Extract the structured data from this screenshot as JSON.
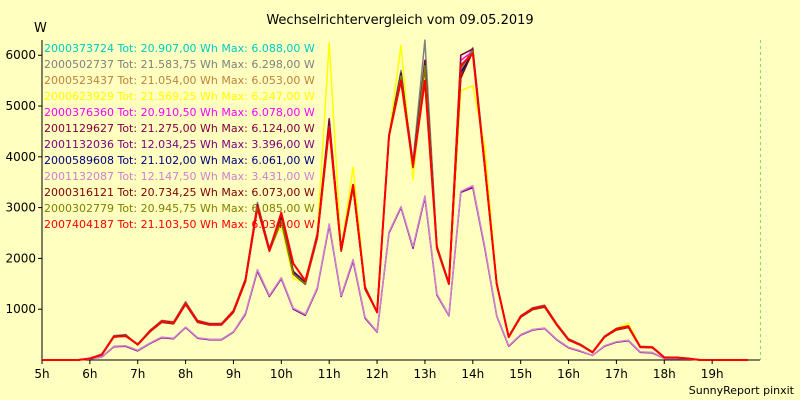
{
  "chart_data": {
    "type": "line",
    "title": "Wechselrichtervergleich vom 09.05.2019",
    "ylabel": "W",
    "xlabel": "",
    "footer": "SunnyReport pinxit",
    "x_ticks": [
      "5h",
      "6h",
      "7h",
      "8h",
      "9h",
      "10h",
      "11h",
      "12h",
      "13h",
      "14h",
      "15h",
      "16h",
      "17h",
      "18h",
      "19h"
    ],
    "x_range": [
      5,
      20
    ],
    "y_ticks": [
      1000,
      2000,
      3000,
      4000,
      5000,
      6000
    ],
    "ylim": [
      0,
      6300
    ],
    "grid": true,
    "legend_position": "top-left",
    "x": [
      5.0,
      5.25,
      5.5,
      5.75,
      6.0,
      6.25,
      6.5,
      6.75,
      7.0,
      7.25,
      7.5,
      7.75,
      8.0,
      8.25,
      8.5,
      8.75,
      9.0,
      9.25,
      9.5,
      9.75,
      10.0,
      10.25,
      10.5,
      10.75,
      11.0,
      11.25,
      11.5,
      11.75,
      12.0,
      12.25,
      12.5,
      12.75,
      13.0,
      13.25,
      13.5,
      13.75,
      14.0,
      14.25,
      14.5,
      14.75,
      15.0,
      15.25,
      15.5,
      15.75,
      16.0,
      16.25,
      16.5,
      16.75,
      17.0,
      17.25,
      17.5,
      17.75,
      18.0,
      18.25,
      18.5,
      18.75,
      19.0,
      19.25,
      19.5,
      19.75
    ],
    "series": [
      {
        "name": "2000373724 Tot: 20.907,00 Wh Max: 6.088,00 W",
        "color": "#00c8c8",
        "values": [
          0,
          0,
          0,
          0,
          30,
          100,
          450,
          480,
          300,
          550,
          750,
          720,
          1100,
          750,
          700,
          700,
          950,
          1550,
          3000,
          2150,
          2750,
          1700,
          1500,
          2400,
          4600,
          2150,
          3400,
          1400,
          950,
          4400,
          5600,
          3800,
          5800,
          2200,
          1500,
          5600,
          6050,
          3800,
          1500,
          450,
          850,
          1000,
          1050,
          700,
          400,
          300,
          150,
          450,
          600,
          650,
          250,
          250,
          50,
          50,
          30,
          0,
          0,
          0,
          0,
          0
        ]
      },
      {
        "name": "2000502737 Tot: 21.583,75 Wh Max: 6.298,00 W",
        "color": "#808080",
        "values": [
          0,
          0,
          0,
          0,
          30,
          100,
          480,
          500,
          300,
          580,
          780,
          750,
          1150,
          780,
          720,
          720,
          980,
          1600,
          3100,
          2200,
          2850,
          1750,
          1550,
          2500,
          4700,
          2200,
          3450,
          1450,
          950,
          4450,
          5700,
          3900,
          6298,
          2250,
          1520,
          5700,
          6150,
          3900,
          1520,
          470,
          870,
          1030,
          1080,
          720,
          420,
          310,
          160,
          470,
          620,
          670,
          270,
          260,
          60,
          50,
          30,
          0,
          0,
          0,
          0,
          0
        ]
      },
      {
        "name": "2000523437 Tot: 21.054,00 Wh Max: 6.053,00 W",
        "color": "#c08040",
        "values": [
          0,
          0,
          0,
          0,
          30,
          100,
          460,
          480,
          300,
          560,
          760,
          730,
          1100,
          760,
          700,
          700,
          960,
          1560,
          3020,
          2170,
          2780,
          1720,
          1510,
          2420,
          4620,
          2170,
          3410,
          1410,
          940,
          4410,
          5620,
          3820,
          5820,
          2210,
          1500,
          5620,
          6053,
          3810,
          1500,
          450,
          850,
          1010,
          1060,
          700,
          400,
          300,
          150,
          450,
          610,
          660,
          250,
          250,
          50,
          50,
          30,
          0,
          0,
          0,
          0,
          0
        ]
      },
      {
        "name": "2000623929 Tot: 21.569,25 Wh Max: 6.247,00 W",
        "color": "#ffff00",
        "values": [
          0,
          0,
          0,
          0,
          30,
          100,
          470,
          490,
          300,
          570,
          770,
          740,
          1120,
          770,
          710,
          710,
          970,
          1580,
          3050,
          2180,
          2650,
          1600,
          1520,
          2450,
          6247,
          2180,
          3800,
          1420,
          950,
          4420,
          6200,
          3550,
          5850,
          2220,
          1510,
          5300,
          5400,
          4200,
          1510,
          460,
          860,
          1020,
          1070,
          710,
          410,
          300,
          150,
          460,
          620,
          720,
          260,
          250,
          50,
          50,
          30,
          0,
          0,
          0,
          0,
          0
        ]
      },
      {
        "name": "2000376360 Tot: 20.910,50 Wh Max: 6.078,00 W",
        "color": "#ff00ff",
        "values": [
          0,
          0,
          0,
          0,
          30,
          100,
          450,
          480,
          300,
          550,
          750,
          720,
          1100,
          750,
          700,
          700,
          950,
          1550,
          3000,
          2150,
          2750,
          1700,
          1500,
          2400,
          4600,
          2150,
          3400,
          1400,
          950,
          4400,
          5600,
          3800,
          5800,
          2200,
          1500,
          5900,
          6078,
          3800,
          1500,
          450,
          850,
          1000,
          1050,
          700,
          400,
          300,
          150,
          450,
          600,
          650,
          250,
          250,
          50,
          50,
          30,
          0,
          0,
          0,
          0,
          0
        ]
      },
      {
        "name": "2001129627 Tot: 21.275,00 Wh Max: 6.124,00 W",
        "color": "#800040",
        "values": [
          0,
          0,
          0,
          0,
          30,
          100,
          470,
          490,
          300,
          570,
          770,
          740,
          1120,
          770,
          710,
          710,
          970,
          1580,
          3060,
          2180,
          2800,
          1740,
          1520,
          2450,
          4750,
          2180,
          3450,
          1420,
          950,
          4430,
          5650,
          3850,
          5900,
          2230,
          1510,
          6000,
          6124,
          3850,
          1510,
          460,
          860,
          1020,
          1070,
          710,
          410,
          300,
          150,
          460,
          620,
          670,
          260,
          250,
          50,
          50,
          30,
          0,
          0,
          0,
          0,
          0
        ]
      },
      {
        "name": "2001132036 Tot: 12.034,25 Wh Max: 3.396,00 W",
        "color": "#800080",
        "values": [
          0,
          0,
          0,
          0,
          20,
          60,
          260,
          270,
          180,
          320,
          440,
          420,
          640,
          430,
          400,
          400,
          550,
          900,
          1750,
          1250,
          1600,
          1000,
          880,
          1400,
          2650,
          1250,
          1950,
          820,
          550,
          2500,
          3000,
          2200,
          3200,
          1280,
          870,
          3300,
          3396,
          2200,
          870,
          270,
          490,
          590,
          620,
          400,
          240,
          170,
          90,
          270,
          350,
          380,
          150,
          140,
          30,
          30,
          20,
          0,
          0,
          0,
          0,
          0
        ]
      },
      {
        "name": "2000589608 Tot: 21.102,00 Wh Max: 6.061,00 W",
        "color": "#000080",
        "values": [
          0,
          0,
          0,
          0,
          30,
          100,
          460,
          480,
          300,
          560,
          760,
          730,
          1100,
          760,
          700,
          700,
          960,
          1560,
          3020,
          2170,
          2780,
          1720,
          1510,
          2420,
          4620,
          2170,
          3410,
          1410,
          940,
          4410,
          5620,
          3820,
          5820,
          2210,
          1500,
          5650,
          6061,
          3810,
          1500,
          450,
          850,
          1010,
          1060,
          700,
          400,
          300,
          150,
          450,
          610,
          660,
          250,
          250,
          50,
          50,
          30,
          0,
          0,
          0,
          0,
          0
        ]
      },
      {
        "name": "2001132087 Tot: 12.147,50 Wh Max: 3.431,00 W",
        "color": "#d080d0",
        "values": [
          0,
          0,
          0,
          0,
          20,
          60,
          270,
          280,
          190,
          330,
          450,
          430,
          650,
          440,
          410,
          410,
          560,
          920,
          1780,
          1270,
          1620,
          1020,
          900,
          1420,
          2680,
          1270,
          1980,
          840,
          560,
          2520,
          3020,
          2230,
          3230,
          1300,
          880,
          3320,
          3431,
          2230,
          880,
          280,
          500,
          600,
          630,
          410,
          250,
          180,
          90,
          280,
          360,
          390,
          160,
          150,
          30,
          30,
          20,
          0,
          0,
          0,
          0,
          0
        ]
      },
      {
        "name": "2000316121 Tot: 20.734,25 Wh Max: 6.073,00 W",
        "color": "#800000",
        "values": [
          0,
          0,
          0,
          0,
          30,
          100,
          450,
          470,
          300,
          550,
          740,
          710,
          1090,
          740,
          690,
          690,
          940,
          1540,
          2980,
          2140,
          2740,
          1690,
          1490,
          2390,
          4580,
          2140,
          3390,
          1390,
          940,
          4390,
          5590,
          3790,
          5790,
          2190,
          1490,
          5550,
          6073,
          3790,
          1490,
          450,
          840,
          990,
          1040,
          690,
          390,
          290,
          150,
          450,
          590,
          640,
          250,
          240,
          50,
          50,
          30,
          0,
          0,
          0,
          0,
          0
        ]
      },
      {
        "name": "2000302779 Tot: 20.945,75 Wh Max: 6.085,00 W",
        "color": "#808000",
        "values": [
          0,
          0,
          0,
          0,
          30,
          100,
          450,
          480,
          300,
          550,
          750,
          720,
          1100,
          750,
          700,
          700,
          950,
          1550,
          3000,
          2150,
          2750,
          1700,
          1500,
          2400,
          4600,
          2150,
          3400,
          1400,
          950,
          4400,
          5600,
          3800,
          5800,
          2200,
          1500,
          5750,
          6085,
          3800,
          1500,
          450,
          850,
          1000,
          1050,
          700,
          400,
          300,
          150,
          450,
          600,
          650,
          250,
          250,
          50,
          50,
          30,
          0,
          0,
          0,
          0,
          0
        ]
      },
      {
        "name": "2007404187 Tot: 21.103,50 Wh Max: 6.034,00 W",
        "color": "#ff0000",
        "values": [
          0,
          0,
          0,
          0,
          30,
          110,
          460,
          470,
          310,
          560,
          760,
          730,
          1110,
          760,
          700,
          700,
          960,
          1560,
          3020,
          2150,
          2900,
          1900,
          1560,
          2420,
          4580,
          2170,
          3450,
          1420,
          940,
          4410,
          5500,
          3820,
          5500,
          2210,
          1500,
          5800,
          6034,
          3810,
          1500,
          450,
          860,
          1010,
          1060,
          700,
          400,
          300,
          150,
          450,
          610,
          660,
          250,
          250,
          50,
          50,
          30,
          0,
          0,
          0,
          0,
          0
        ]
      }
    ]
  }
}
